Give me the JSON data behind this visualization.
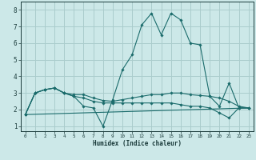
{
  "xlabel": "Humidex (Indice chaleur)",
  "xlim": [
    -0.5,
    23.5
  ],
  "ylim": [
    0.7,
    8.5
  ],
  "xticks": [
    0,
    1,
    2,
    3,
    4,
    5,
    6,
    7,
    8,
    9,
    10,
    11,
    12,
    13,
    14,
    15,
    16,
    17,
    18,
    19,
    20,
    21,
    22,
    23
  ],
  "yticks": [
    1,
    2,
    3,
    4,
    5,
    6,
    7,
    8
  ],
  "bg_color": "#cce8e8",
  "grid_color": "#aacccc",
  "line_color": "#1a6b6b",
  "lines": [
    {
      "x": [
        0,
        1,
        2,
        3,
        4,
        5,
        6,
        7,
        8,
        9,
        10,
        11,
        12,
        13,
        14,
        15,
        16,
        17,
        18,
        19,
        20,
        21,
        22,
        23
      ],
      "y": [
        1.7,
        3.0,
        3.2,
        3.3,
        3.0,
        2.8,
        2.2,
        2.1,
        1.0,
        2.6,
        4.4,
        5.3,
        7.1,
        7.8,
        6.5,
        7.8,
        7.4,
        6.0,
        5.9,
        2.8,
        2.2,
        3.6,
        2.1,
        2.1
      ],
      "has_markers": true
    },
    {
      "x": [
        0,
        1,
        2,
        3,
        4,
        5,
        6,
        7,
        8,
        9,
        10,
        11,
        12,
        13,
        14,
        15,
        16,
        17,
        18,
        19,
        20,
        21,
        22,
        23
      ],
      "y": [
        1.7,
        3.0,
        3.2,
        3.3,
        3.0,
        2.9,
        2.9,
        2.7,
        2.55,
        2.5,
        2.6,
        2.7,
        2.8,
        2.9,
        2.9,
        3.0,
        3.0,
        2.9,
        2.85,
        2.8,
        2.7,
        2.5,
        2.2,
        2.1
      ],
      "has_markers": true
    },
    {
      "x": [
        0,
        1,
        2,
        3,
        4,
        5,
        6,
        7,
        8,
        9,
        10,
        11,
        12,
        13,
        14,
        15,
        16,
        17,
        18,
        19,
        20,
        21,
        22,
        23
      ],
      "y": [
        1.7,
        3.0,
        3.2,
        3.3,
        3.0,
        2.8,
        2.7,
        2.5,
        2.4,
        2.4,
        2.4,
        2.4,
        2.4,
        2.4,
        2.4,
        2.4,
        2.3,
        2.2,
        2.2,
        2.1,
        1.8,
        1.5,
        2.1,
        2.1
      ],
      "has_markers": true
    },
    {
      "x": [
        0,
        23
      ],
      "y": [
        1.7,
        2.1
      ],
      "has_markers": false
    }
  ]
}
